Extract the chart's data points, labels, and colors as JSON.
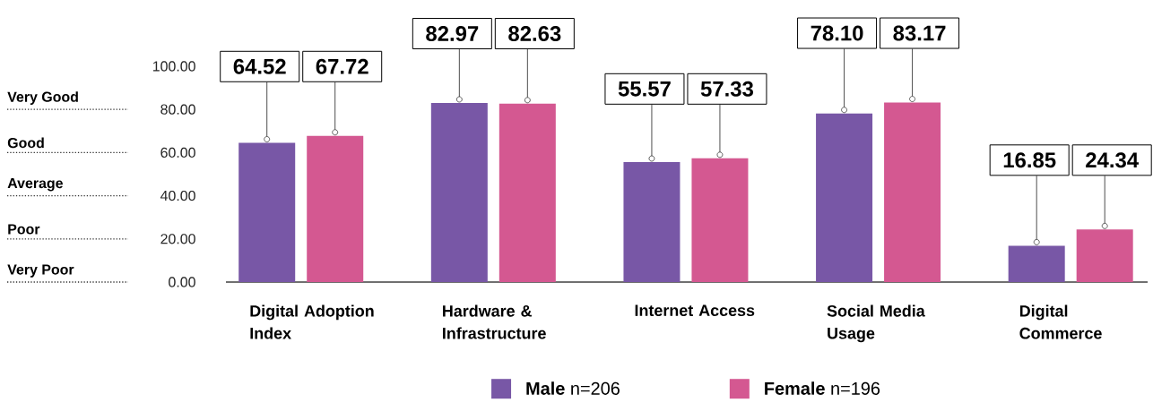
{
  "chart_data": {
    "type": "bar",
    "categories": [
      "Digital Adoption Index",
      "Hardware & Infrastructure",
      "Internet Access",
      "Social Media Usage",
      "Digital Commerce"
    ],
    "series": [
      {
        "name": "**Male** n=206",
        "color": "#7857a6",
        "values": [
          64.52,
          82.97,
          55.57,
          78.1,
          16.85
        ],
        "value_labels": [
          "64.52",
          "82.97",
          "55.57",
          "78.10",
          "16.85"
        ]
      },
      {
        "name": "**Female** n=196",
        "color": "#d45891",
        "values": [
          67.72,
          82.63,
          57.33,
          83.17,
          24.34
        ],
        "value_labels": [
          "67.72",
          "82.63",
          "57.33",
          "83.17",
          "24.34"
        ]
      }
    ],
    "ylim": [
      0,
      100
    ],
    "yticks": [
      {
        "value": 0,
        "label": "0.00"
      },
      {
        "value": 20,
        "label": "20.00"
      },
      {
        "value": 40,
        "label": "40.00"
      },
      {
        "value": 60,
        "label": "60.00"
      },
      {
        "value": 80,
        "label": "80.00"
      },
      {
        "value": 100,
        "label": "100.00"
      }
    ],
    "annotations": [
      "Very Good",
      "Good",
      "Average",
      "Poor",
      "Very Poor"
    ],
    "legend": "bottom"
  }
}
